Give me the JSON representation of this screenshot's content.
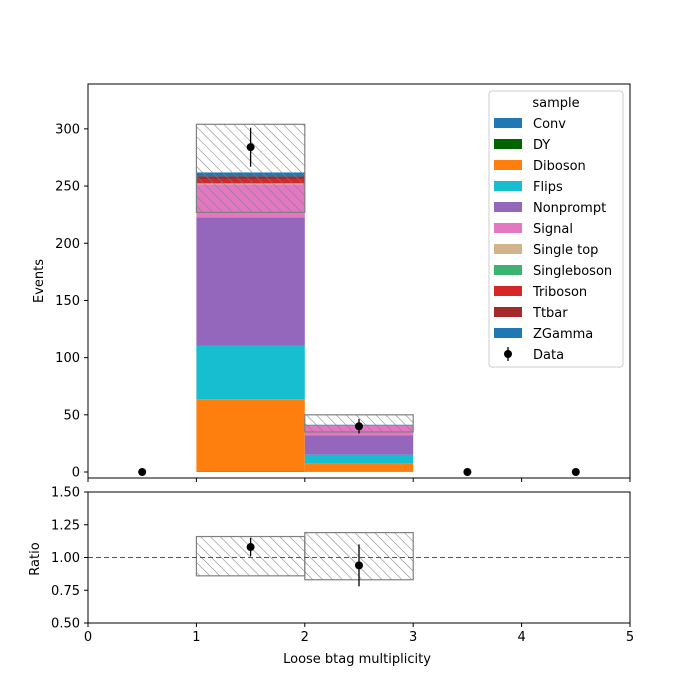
{
  "chart_data": {
    "type": "bar",
    "stacked": true,
    "bins": [
      [
        0,
        1
      ],
      [
        1,
        2
      ],
      [
        2,
        3
      ],
      [
        3,
        4
      ],
      [
        4,
        5
      ]
    ],
    "xlabel": "Loose btag multiplicity",
    "ylabel": "Events",
    "ratio_ylabel": "Ratio",
    "xlim": [
      0,
      5
    ],
    "ylim": [
      0,
      320
    ],
    "ratio_ylim": [
      0.5,
      1.5
    ],
    "x_ticks": [
      "0",
      "1",
      "2",
      "3",
      "4",
      "5"
    ],
    "y_ticks": [
      "0",
      "50",
      "100",
      "150",
      "200",
      "250",
      "300"
    ],
    "ratio_y_ticks": [
      "0.50",
      "0.75",
      "1.00",
      "1.25",
      "1.50"
    ],
    "legend_title": "sample",
    "legend_position": "top-right",
    "series": [
      {
        "name": "Conv",
        "color": "#1f77b4",
        "values": [
          0,
          0.3,
          0.1,
          0,
          0
        ]
      },
      {
        "name": "DY",
        "color": "#006400",
        "values": [
          0,
          0.3,
          0.1,
          0,
          0
        ]
      },
      {
        "name": "Diboson",
        "color": "#ff7f0e",
        "values": [
          0,
          63,
          7,
          0,
          0
        ]
      },
      {
        "name": "Flips",
        "color": "#17becf",
        "values": [
          0,
          47,
          8,
          0,
          0
        ]
      },
      {
        "name": "Nonprompt",
        "color": "#9467bd",
        "values": [
          0,
          112,
          17,
          0,
          0
        ]
      },
      {
        "name": "Signal",
        "color": "#e377c2",
        "values": [
          0,
          29,
          8,
          0,
          0
        ]
      },
      {
        "name": "Single top",
        "color": "#d2b48c",
        "values": [
          0,
          0.5,
          0.2,
          0,
          0
        ]
      },
      {
        "name": "Singleboson",
        "color": "#3cb371",
        "values": [
          0,
          0.3,
          0.1,
          0,
          0
        ]
      },
      {
        "name": "Triboson",
        "color": "#d62728",
        "values": [
          0,
          3,
          0.3,
          0,
          0
        ]
      },
      {
        "name": "Ttbar",
        "color": "#a52a2a",
        "values": [
          0,
          3,
          0.3,
          0,
          0
        ]
      },
      {
        "name": "ZGamma",
        "color": "#1f77b4",
        "values": [
          0,
          3.5,
          0.2,
          0,
          0
        ]
      }
    ],
    "uncertainty": [
      {
        "low": 0,
        "high": 0
      },
      {
        "low": 227,
        "high": 304
      },
      {
        "low": 35,
        "high": 50
      },
      {
        "low": 0,
        "high": 0
      },
      {
        "low": 0,
        "high": 0
      }
    ],
    "data": {
      "name": "Data",
      "x": [
        0.5,
        1.5,
        2.5,
        3.5,
        4.5
      ],
      "y": [
        0,
        284,
        40,
        0,
        0
      ],
      "yerr": [
        0,
        17,
        6.3,
        0,
        0
      ]
    },
    "ratio": {
      "x": [
        1.5,
        2.5
      ],
      "y": [
        1.08,
        0.94
      ],
      "yerr": [
        0.07,
        0.16
      ],
      "band": [
        {
          "x0": 1,
          "x1": 2,
          "low": 0.86,
          "high": 1.16
        },
        {
          "x0": 2,
          "x1": 3,
          "low": 0.83,
          "high": 1.19
        }
      ]
    }
  }
}
